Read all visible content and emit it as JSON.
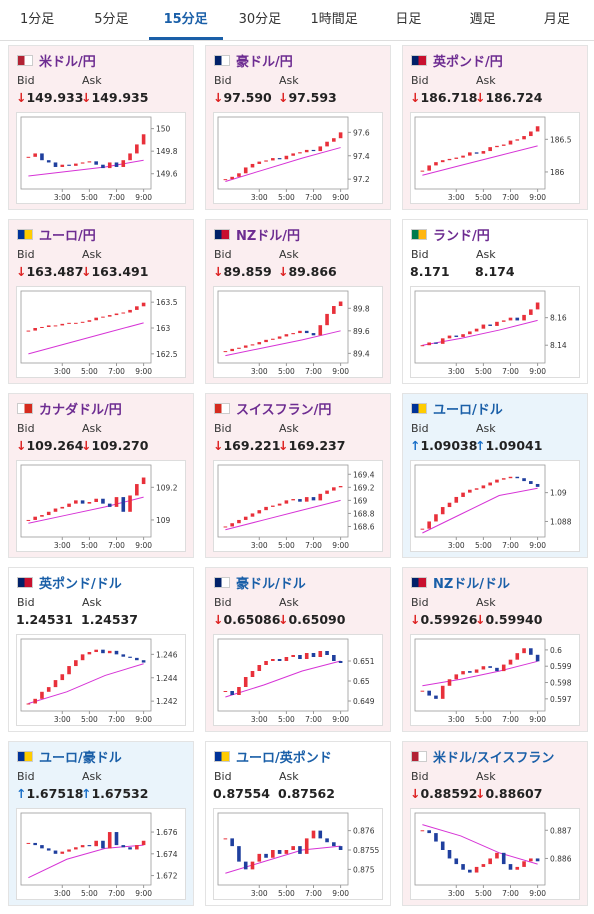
{
  "tabs": {
    "items": [
      "1分足",
      "5分足",
      "15分足",
      "30分足",
      "1時間足",
      "日足",
      "週足",
      "月足"
    ],
    "selected": 2
  },
  "x_axis": {
    "xlim": [
      -0.5,
      17.5
    ],
    "xticks": [
      {
        "value": 5,
        "label": "3:00"
      },
      {
        "value": 9,
        "label": "5:00"
      },
      {
        "value": 13,
        "label": "7:00"
      },
      {
        "value": 17,
        "label": "9:00"
      }
    ],
    "up_color": "#e8303a",
    "down_color": "#1f3f9e",
    "ma_color": "#d633d6"
  },
  "cards": [
    {
      "title": "米ドル/円",
      "title_color": "#6d2c91",
      "background": "#fbeef0",
      "bid_label": "Bid",
      "ask_label": "Ask",
      "bid": "↓149.933",
      "ask": "↓149.935",
      "chart": {
        "ylim": [
          149.5,
          150.05
        ],
        "yticks": [
          150,
          149.8,
          149.6
        ],
        "closes": [
          149.75,
          149.78,
          149.72,
          149.7,
          149.66,
          149.68,
          149.67,
          149.69,
          149.7,
          149.71,
          149.68,
          149.65,
          149.7,
          149.66,
          149.72,
          149.78,
          149.86,
          149.95
        ],
        "ma": [
          149.58,
          149.62,
          149.66,
          149.72
        ]
      }
    },
    {
      "title": "豪ドル/円",
      "title_color": "#6d2c91",
      "background": "#fbeef0",
      "bid_label": "Bid",
      "ask_label": "Ask",
      "bid": "↓97.590",
      "ask": "↓97.593",
      "chart": {
        "ylim": [
          97.15,
          97.68
        ],
        "yticks": [
          97.6,
          97.4,
          97.2
        ],
        "closes": [
          97.2,
          97.22,
          97.25,
          97.3,
          97.33,
          97.35,
          97.36,
          97.38,
          97.37,
          97.4,
          97.42,
          97.43,
          97.45,
          97.44,
          97.48,
          97.52,
          97.55,
          97.6
        ],
        "ma": [
          97.18,
          97.28,
          97.38,
          97.47
        ]
      }
    },
    {
      "title": "英ポンド/円",
      "title_color": "#6d2c91",
      "background": "#fbeef0",
      "bid_label": "Bid",
      "ask_label": "Ask",
      "bid": "↓186.718",
      "ask": "↓186.724",
      "chart": {
        "ylim": [
          185.8,
          186.75
        ],
        "yticks": [
          186.5,
          186
        ],
        "closes": [
          186.02,
          186.1,
          186.15,
          186.18,
          186.2,
          186.22,
          186.25,
          186.3,
          186.28,
          186.32,
          186.38,
          186.4,
          186.42,
          186.48,
          186.5,
          186.55,
          186.62,
          186.7
        ],
        "ma": [
          185.95,
          186.1,
          186.25,
          186.4
        ]
      }
    },
    {
      "title": "ユーロ/円",
      "title_color": "#6d2c91",
      "background": "#fbeef0",
      "bid_label": "Bid",
      "ask_label": "Ask",
      "bid": "↓163.487",
      "ask": "↓163.491",
      "chart": {
        "ylim": [
          162.4,
          163.6
        ],
        "yticks": [
          163.5,
          163,
          162.5
        ],
        "closes": [
          162.95,
          163.0,
          163.02,
          163.05,
          163.05,
          163.08,
          163.1,
          163.1,
          163.12,
          163.15,
          163.2,
          163.22,
          163.25,
          163.28,
          163.3,
          163.35,
          163.42,
          163.49
        ],
        "ma": [
          162.5,
          162.7,
          162.9,
          163.1
        ]
      }
    },
    {
      "title": "NZドル/円",
      "title_color": "#6d2c91",
      "background": "#fbeef0",
      "bid_label": "Bid",
      "ask_label": "Ask",
      "bid": "↓89.859",
      "ask": "↓89.866",
      "chart": {
        "ylim": [
          89.35,
          89.9
        ],
        "yticks": [
          89.8,
          89.6,
          89.4
        ],
        "closes": [
          89.42,
          89.44,
          89.45,
          89.47,
          89.48,
          89.5,
          89.52,
          89.53,
          89.55,
          89.57,
          89.58,
          89.6,
          89.58,
          89.56,
          89.65,
          89.75,
          89.82,
          89.86
        ],
        "ma": [
          89.38,
          89.45,
          89.52,
          89.6
        ]
      }
    },
    {
      "title": "ランド/円",
      "title_color": "#6d2c91",
      "background": "#ffffff",
      "bid_label": "Bid",
      "ask_label": "Ask",
      "bid": "8.171",
      "ask": "8.174",
      "chart": {
        "ylim": [
          8.13,
          8.175
        ],
        "yticks": [
          8.16,
          8.14
        ],
        "closes": [
          8.14,
          8.142,
          8.141,
          8.145,
          8.147,
          8.146,
          8.148,
          8.15,
          8.152,
          8.155,
          8.154,
          8.157,
          8.158,
          8.16,
          8.158,
          8.162,
          8.166,
          8.171
        ],
        "ma": [
          8.14,
          8.145,
          8.151,
          8.158
        ]
      }
    },
    {
      "title": "カナダドル/円",
      "title_color": "#6d2c91",
      "background": "#fbeef0",
      "bid_label": "Bid",
      "ask_label": "Ask",
      "bid": "↓109.264",
      "ask": "↓109.270",
      "chart": {
        "ylim": [
          108.92,
          109.3
        ],
        "yticks": [
          109.2,
          109
        ],
        "closes": [
          109.0,
          109.02,
          109.03,
          109.05,
          109.07,
          109.08,
          109.1,
          109.12,
          109.1,
          109.11,
          109.13,
          109.1,
          109.08,
          109.14,
          109.05,
          109.15,
          109.22,
          109.26
        ],
        "ma": [
          108.98,
          109.03,
          109.08,
          109.14
        ]
      }
    },
    {
      "title": "スイスフラン/円",
      "title_color": "#6d2c91",
      "background": "#fbeef0",
      "bid_label": "Bid",
      "ask_label": "Ask",
      "bid": "↓169.221",
      "ask": "↓169.237",
      "chart": {
        "ylim": [
          168.5,
          169.45
        ],
        "yticks": [
          169.4,
          169.2,
          169,
          168.8,
          168.6
        ],
        "closes": [
          168.6,
          168.65,
          168.7,
          168.75,
          168.8,
          168.85,
          168.9,
          168.92,
          168.95,
          169.0,
          169.02,
          168.98,
          169.05,
          169.0,
          169.1,
          169.15,
          169.2,
          169.22
        ],
        "ma": [
          168.55,
          168.7,
          168.85,
          169.0
        ]
      }
    },
    {
      "title": "ユーロ/ドル",
      "title_color": "#1a5fa8",
      "background": "#eaf4fb",
      "bid_label": "Bid",
      "ask_label": "Ask",
      "bid": "↑1.09038",
      "ask": "↑1.09041",
      "chart": {
        "ylim": [
          1.0872,
          1.0915
        ],
        "yticks": [
          1.09,
          1.088
        ],
        "closes": [
          1.0875,
          1.088,
          1.0885,
          1.089,
          1.0893,
          1.0897,
          1.09,
          1.0902,
          1.0903,
          1.0905,
          1.0907,
          1.0909,
          1.091,
          1.0911,
          1.091,
          1.0908,
          1.0906,
          1.0904
        ],
        "ma": [
          1.0872,
          1.0885,
          1.0898,
          1.0903
        ]
      }
    },
    {
      "title": "英ポンド/ドル",
      "title_color": "#1a5fa8",
      "background": "#ffffff",
      "bid_label": "Bid",
      "ask_label": "Ask",
      "bid": "1.24531",
      "ask": "1.24537",
      "chart": {
        "ylim": [
          1.2415,
          1.2468
        ],
        "yticks": [
          1.246,
          1.244,
          1.242
        ],
        "closes": [
          1.2418,
          1.2422,
          1.2428,
          1.2432,
          1.2438,
          1.2443,
          1.245,
          1.2455,
          1.246,
          1.2462,
          1.2464,
          1.2461,
          1.2463,
          1.246,
          1.2458,
          1.2457,
          1.2455,
          1.2453
        ],
        "ma": [
          1.2418,
          1.2428,
          1.2442,
          1.2452
        ]
      }
    },
    {
      "title": "豪ドル/ドル",
      "title_color": "#1a5fa8",
      "background": "#fbeef0",
      "bid_label": "Bid",
      "ask_label": "Ask",
      "bid": "↓0.65086",
      "ask": "↓0.65090",
      "chart": {
        "ylim": [
          0.6487,
          0.6518
        ],
        "yticks": [
          0.651,
          0.65,
          0.649
        ],
        "closes": [
          0.6495,
          0.6493,
          0.6497,
          0.6502,
          0.6505,
          0.6508,
          0.651,
          0.6511,
          0.651,
          0.6512,
          0.6513,
          0.6511,
          0.6514,
          0.6512,
          0.6515,
          0.6513,
          0.651,
          0.6509
        ],
        "ma": [
          0.6492,
          0.6498,
          0.6505,
          0.651
        ]
      }
    },
    {
      "title": "NZドル/ドル",
      "title_color": "#1a5fa8",
      "background": "#fbeef0",
      "bid_label": "Bid",
      "ask_label": "Ask",
      "bid": "↓0.59926",
      "ask": "↓0.59940",
      "chart": {
        "ylim": [
          0.5965,
          0.6003
        ],
        "yticks": [
          0.6,
          0.599,
          0.598,
          0.597
        ],
        "closes": [
          0.5975,
          0.5972,
          0.597,
          0.5978,
          0.5982,
          0.5985,
          0.5987,
          0.5986,
          0.5988,
          0.599,
          0.5989,
          0.5987,
          0.5991,
          0.5994,
          0.5998,
          0.6001,
          0.5997,
          0.5993
        ],
        "ma": [
          0.5978,
          0.5982,
          0.5987,
          0.5993
        ]
      }
    },
    {
      "title": "ユーロ/豪ドル",
      "title_color": "#1a5fa8",
      "background": "#eaf4fb",
      "bid_label": "Bid",
      "ask_label": "Ask",
      "bid": "↑1.67518",
      "ask": "↑1.67532",
      "chart": {
        "ylim": [
          1.6715,
          1.6772
        ],
        "yticks": [
          1.676,
          1.674,
          1.672
        ],
        "closes": [
          1.675,
          1.6748,
          1.6745,
          1.6743,
          1.674,
          1.6742,
          1.6744,
          1.6746,
          1.6748,
          1.6747,
          1.6752,
          1.6745,
          1.676,
          1.6748,
          1.6746,
          1.6744,
          1.6748,
          1.6752
        ],
        "ma": [
          1.6718,
          1.6735,
          1.6745,
          1.6748
        ]
      }
    },
    {
      "title": "ユーロ/英ポンド",
      "title_color": "#1a5fa8",
      "background": "#ffffff",
      "bid_label": "Bid",
      "ask_label": "Ask",
      "bid": "0.87554",
      "ask": "0.87562",
      "chart": {
        "ylim": [
          0.8747,
          0.8763
        ],
        "yticks": [
          0.876,
          0.8755,
          0.875
        ],
        "closes": [
          0.8758,
          0.8756,
          0.8752,
          0.875,
          0.8752,
          0.8754,
          0.8753,
          0.8755,
          0.8754,
          0.8755,
          0.8756,
          0.8754,
          0.8758,
          0.876,
          0.8758,
          0.8757,
          0.8756,
          0.8755
        ],
        "ma": [
          0.8749,
          0.8752,
          0.8755,
          0.8756
        ]
      }
    },
    {
      "title": "米ドル/スイスフラン",
      "title_color": "#1a5fa8",
      "background": "#fbeef0",
      "bid_label": "Bid",
      "ask_label": "Ask",
      "bid": "↓0.88592",
      "ask": "↓0.88607",
      "chart": {
        "ylim": [
          0.8852,
          0.8874
        ],
        "yticks": [
          0.887,
          0.886
        ],
        "closes": [
          0.887,
          0.8869,
          0.8866,
          0.8863,
          0.886,
          0.8858,
          0.8856,
          0.8855,
          0.8857,
          0.8858,
          0.886,
          0.8862,
          0.8858,
          0.8856,
          0.8857,
          0.8859,
          0.886,
          0.8859
        ],
        "ma": [
          0.8872,
          0.8868,
          0.8862,
          0.8858
        ]
      }
    }
  ]
}
